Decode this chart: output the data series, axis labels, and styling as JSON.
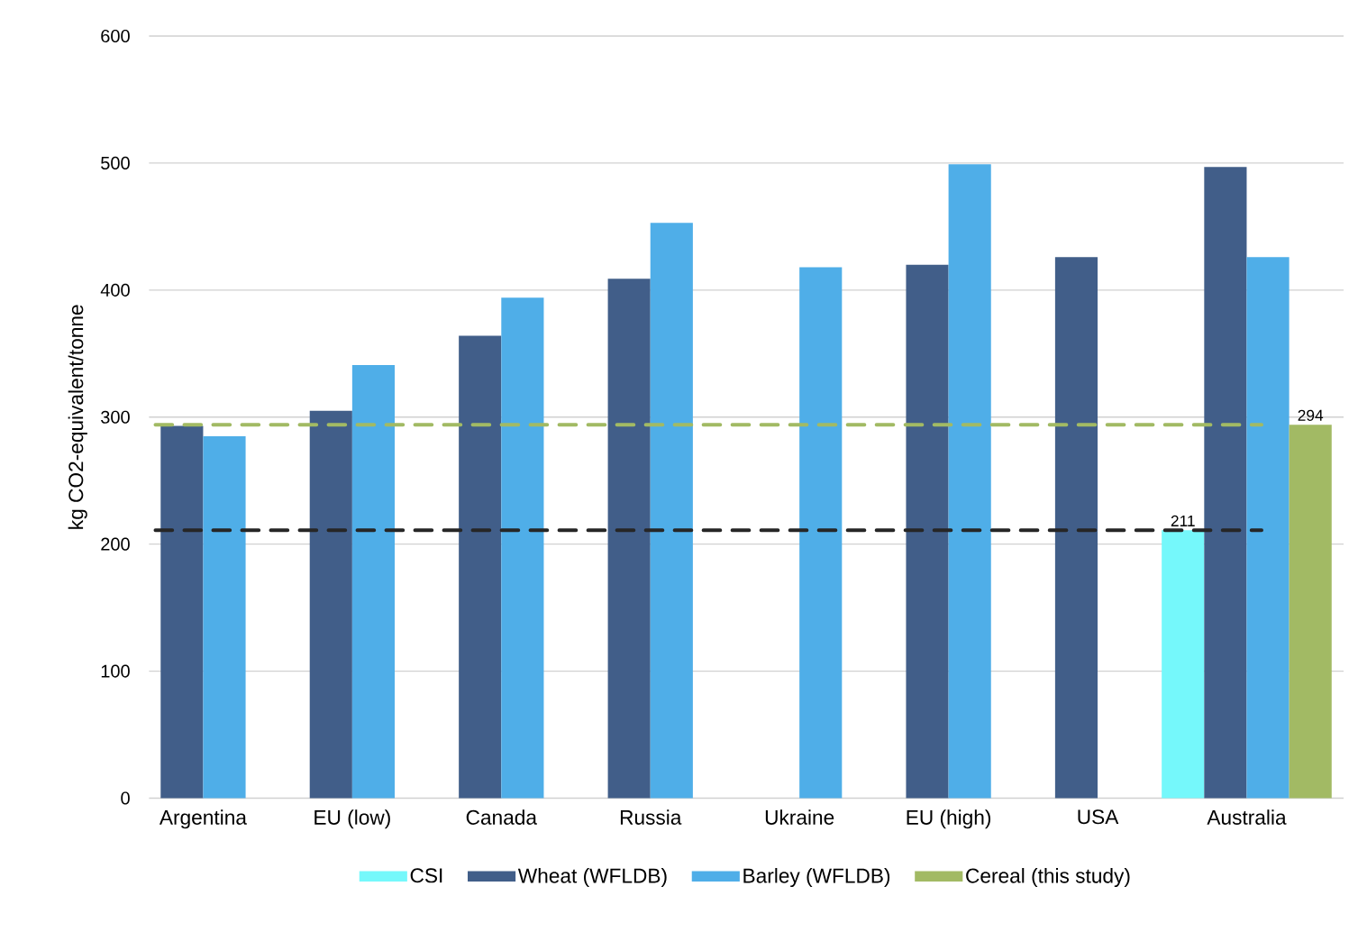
{
  "chart_data": {
    "type": "bar",
    "ylabel": "kg CO2-equivalent/tonne",
    "categories": [
      "Argentina",
      "EU (low)",
      "Canada",
      "Russia",
      "Ukraine",
      "EU (high)",
      "USA",
      "Australia"
    ],
    "series": [
      {
        "name": "CSI",
        "color": "#75f8fb",
        "values": [
          null,
          null,
          null,
          null,
          null,
          null,
          null,
          211
        ],
        "value_labels": [
          null,
          null,
          null,
          null,
          null,
          null,
          null,
          "211"
        ]
      },
      {
        "name": "Wheat (WFLDB)",
        "color": "#415e89",
        "values": [
          293,
          305,
          364,
          409,
          null,
          420,
          426,
          497
        ]
      },
      {
        "name": "Barley (WFLDB)",
        "color": "#4faee8",
        "values": [
          285,
          341,
          394,
          453,
          418,
          499,
          null,
          426
        ]
      },
      {
        "name": "Cereal (this study)",
        "color": "#a2ba64",
        "values": [
          null,
          null,
          null,
          null,
          null,
          null,
          null,
          294
        ],
        "value_labels": [
          null,
          null,
          null,
          null,
          null,
          null,
          null,
          "294"
        ]
      }
    ],
    "ylim": [
      0,
      600
    ],
    "yticks": [
      0,
      100,
      200,
      300,
      400,
      500,
      600
    ],
    "grid": "y",
    "legend": "bottom",
    "ref_lines": [
      {
        "axis": "y",
        "value": 211,
        "color": "#262626",
        "line_style": "dashed"
      },
      {
        "axis": "y",
        "value": 294,
        "color": "#a2ba64",
        "line_style": "dashed"
      }
    ]
  }
}
